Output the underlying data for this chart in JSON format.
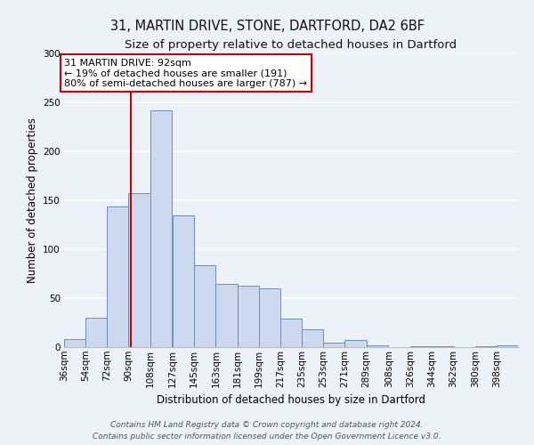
{
  "title": "31, MARTIN DRIVE, STONE, DARTFORD, DA2 6BF",
  "subtitle": "Size of property relative to detached houses in Dartford",
  "xlabel": "Distribution of detached houses by size in Dartford",
  "ylabel": "Number of detached properties",
  "bar_labels": [
    "36sqm",
    "54sqm",
    "72sqm",
    "90sqm",
    "108sqm",
    "127sqm",
    "145sqm",
    "163sqm",
    "181sqm",
    "199sqm",
    "217sqm",
    "235sqm",
    "253sqm",
    "271sqm",
    "289sqm",
    "308sqm",
    "326sqm",
    "344sqm",
    "362sqm",
    "380sqm",
    "398sqm"
  ],
  "bar_values": [
    8,
    30,
    144,
    157,
    242,
    135,
    84,
    65,
    63,
    60,
    29,
    18,
    5,
    7,
    2,
    0,
    1,
    1,
    0,
    1,
    2
  ],
  "bar_color": "#ccd9ee",
  "bar_edge_color": "#6a8fbf",
  "bin_starts": [
    36,
    54,
    72,
    90,
    108,
    127,
    145,
    163,
    181,
    199,
    217,
    235,
    253,
    271,
    289,
    308,
    326,
    344,
    362,
    380,
    398
  ],
  "bin_width": 18,
  "red_line_x": 92,
  "ylim": [
    0,
    300
  ],
  "yticks": [
    0,
    50,
    100,
    150,
    200,
    250,
    300
  ],
  "annotation_title": "31 MARTIN DRIVE: 92sqm",
  "annotation_line1": "← 19% of detached houses are smaller (191)",
  "annotation_line2": "80% of semi-detached houses are larger (787) →",
  "annotation_box_facecolor": "#ffffff",
  "annotation_box_edgecolor": "#cc0000",
  "footer1": "Contains HM Land Registry data © Crown copyright and database right 2024.",
  "footer2": "Contains public sector information licensed under the Open Government Licence v3.0.",
  "background_color": "#edf1f8",
  "grid_color": "#ffffff",
  "title_fontsize": 10.5,
  "subtitle_fontsize": 9.5,
  "axis_label_fontsize": 8.5,
  "tick_fontsize": 7.5,
  "annotation_fontsize": 8,
  "footer_fontsize": 6.5
}
